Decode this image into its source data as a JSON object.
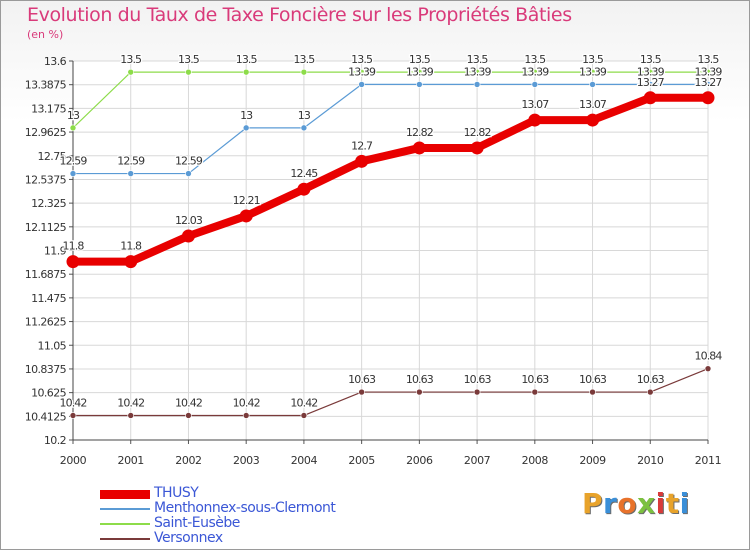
{
  "title": "Evolution du Taux de Taxe Foncière sur les Propriétés Bâties",
  "unit_label": "(en %)",
  "logo": {
    "text": "Proxiti",
    "colors": [
      "#e8a32b",
      "#3a8fd8",
      "#e8722b",
      "#7cc140",
      "#d93a3a",
      "#e8a32b",
      "#3a8fd8"
    ]
  },
  "chart_data": {
    "type": "line",
    "title": "Evolution du Taux de Taxe Foncière sur les Propriétés Bâties",
    "ylabel": "(en %)",
    "xlabel": "",
    "x": [
      "2000",
      "2001",
      "2002",
      "2003",
      "2004",
      "2005",
      "2006",
      "2007",
      "2008",
      "2009",
      "2010",
      "2011"
    ],
    "ylim": [
      10.2,
      13.6
    ],
    "y_ticks": [
      "10.2",
      "10.4125",
      "10.625",
      "10.8375",
      "11.05",
      "11.2625",
      "11.475",
      "11.6875",
      "11.9",
      "12.1125",
      "12.325",
      "12.5375",
      "12.75",
      "12.9625",
      "13.175",
      "13.3875",
      "13.6"
    ],
    "grid": true,
    "legend_position": "bottom-left",
    "series": [
      {
        "name": "THUSY",
        "color": "#e80000",
        "width": "thick",
        "values": [
          11.8,
          11.8,
          12.03,
          12.21,
          12.45,
          12.7,
          12.82,
          12.82,
          13.07,
          13.07,
          13.27,
          13.27
        ],
        "labels": [
          "11.8",
          "11.8",
          "12.03",
          "12.21",
          "12.45",
          "12.7",
          "12.82",
          "12.82",
          "13.07",
          "13.07",
          "13.27",
          "13.27"
        ]
      },
      {
        "name": "Menthonnex-sous-Clermont",
        "color": "#5b9bd5",
        "width": "thin",
        "values": [
          12.59,
          12.59,
          12.59,
          13,
          13,
          13.39,
          13.39,
          13.39,
          13.39,
          13.39,
          13.39,
          13.39
        ],
        "labels": [
          "12.59",
          "12.59",
          "12.59",
          "13",
          "13",
          "13.39",
          "13.39",
          "13.39",
          "13.39",
          "13.39",
          "13.39",
          "13.39"
        ]
      },
      {
        "name": "Saint-Eusèbe",
        "color": "#8ddc4a",
        "width": "thin",
        "values": [
          13,
          13.5,
          13.5,
          13.5,
          13.5,
          13.5,
          13.5,
          13.5,
          13.5,
          13.5,
          13.5,
          13.5
        ],
        "labels": [
          "13",
          "13.5",
          "13.5",
          "13.5",
          "13.5",
          "13.5",
          "13.5",
          "13.5",
          "13.5",
          "13.5",
          "13.5",
          "13.5"
        ]
      },
      {
        "name": "Versonnex",
        "color": "#7a3a3a",
        "width": "thin",
        "values": [
          10.42,
          10.42,
          10.42,
          10.42,
          10.42,
          10.63,
          10.63,
          10.63,
          10.63,
          10.63,
          10.63,
          10.84
        ],
        "labels": [
          "10.42",
          "10.42",
          "10.42",
          "10.42",
          "10.42",
          "10.63",
          "10.63",
          "10.63",
          "10.63",
          "10.63",
          "10.63",
          "10.84"
        ]
      }
    ]
  }
}
